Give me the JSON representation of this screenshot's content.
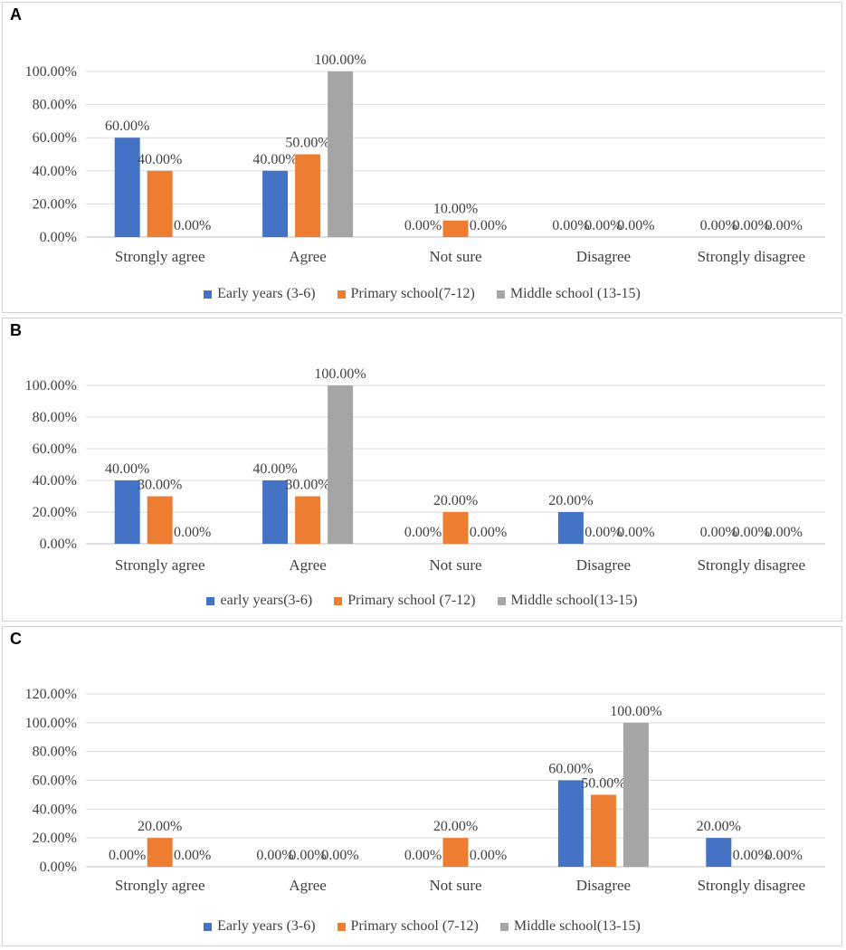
{
  "chart_data": [
    {
      "panel": "A",
      "type": "bar",
      "categories": [
        "Strongly agree",
        "Agree",
        "Not sure",
        "Disagree",
        "Strongly disagree"
      ],
      "ylim": [
        0,
        100
      ],
      "yticks": [
        "0.00%",
        "20.00%",
        "40.00%",
        "60.00%",
        "80.00%",
        "100.00%"
      ],
      "series": [
        {
          "name": "Early years (3-6)",
          "color": "#4472C4",
          "values": [
            60,
            40,
            0,
            0,
            0
          ],
          "labels": [
            "60.00%",
            "40.00%",
            "0.00%",
            "0.00%",
            "0.00%"
          ]
        },
        {
          "name": "Primary school(7-12)",
          "color": "#ED7D31",
          "values": [
            40,
            50,
            10,
            0,
            0
          ],
          "labels": [
            "40.00%",
            "50.00%",
            "10.00%",
            "0.00%",
            "0.00%"
          ]
        },
        {
          "name": "Middle school (13-15)",
          "color": "#A5A5A5",
          "values": [
            0,
            100,
            0,
            0,
            0
          ],
          "labels": [
            "0.00%",
            "100.00%",
            "0.00%",
            "0.00%",
            "0.00%"
          ]
        }
      ],
      "grid": true,
      "legend": "bottom"
    },
    {
      "panel": "B",
      "type": "bar",
      "categories": [
        "Strongly agree",
        "Agree",
        "Not sure",
        "Disagree",
        "Strongly disagree"
      ],
      "ylim": [
        0,
        100
      ],
      "yticks": [
        "0.00%",
        "20.00%",
        "40.00%",
        "60.00%",
        "80.00%",
        "100.00%"
      ],
      "series": [
        {
          "name": "early years(3-6)",
          "color": "#4472C4",
          "values": [
            40,
            40,
            0,
            20,
            0
          ],
          "labels": [
            "40.00%",
            "40.00%",
            "0.00%",
            "20.00%",
            "0.00%"
          ]
        },
        {
          "name": "Primary school (7-12)",
          "color": "#ED7D31",
          "values": [
            30,
            30,
            20,
            0,
            0
          ],
          "labels": [
            "30.00%",
            "30.00%",
            "20.00%",
            "0.00%",
            "0.00%"
          ]
        },
        {
          "name": "Middle school(13-15)",
          "color": "#A5A5A5",
          "values": [
            0,
            100,
            0,
            0,
            0
          ],
          "labels": [
            "0.00%",
            "100.00%",
            "0.00%",
            "0.00%",
            "0.00%"
          ]
        }
      ],
      "grid": true,
      "legend": "bottom"
    },
    {
      "panel": "C",
      "type": "bar",
      "categories": [
        "Strongly agree",
        "Agree",
        "Not sure",
        "Disagree",
        "Strongly disagree"
      ],
      "ylim": [
        0,
        120
      ],
      "yticks": [
        "0.00%",
        "20.00%",
        "40.00%",
        "60.00%",
        "80.00%",
        "100.00%",
        "120.00%"
      ],
      "series": [
        {
          "name": "Early years (3-6)",
          "color": "#4472C4",
          "values": [
            0,
            0,
            0,
            60,
            20
          ],
          "labels": [
            "0.00%",
            "0.00%",
            "0.00%",
            "60.00%",
            "20.00%"
          ]
        },
        {
          "name": "Primary school (7-12)",
          "color": "#ED7D31",
          "values": [
            20,
            0,
            20,
            50,
            0
          ],
          "labels": [
            "20.00%",
            "0.00%",
            "20.00%",
            "50.00%",
            "0.00%"
          ]
        },
        {
          "name": "Middle school(13-15)",
          "color": "#A5A5A5",
          "values": [
            0,
            0,
            0,
            100,
            0
          ],
          "labels": [
            "0.00%",
            "0.00%",
            "0.00%",
            "100.00%",
            "0.00%"
          ]
        }
      ],
      "grid": true,
      "legend": "bottom"
    }
  ]
}
